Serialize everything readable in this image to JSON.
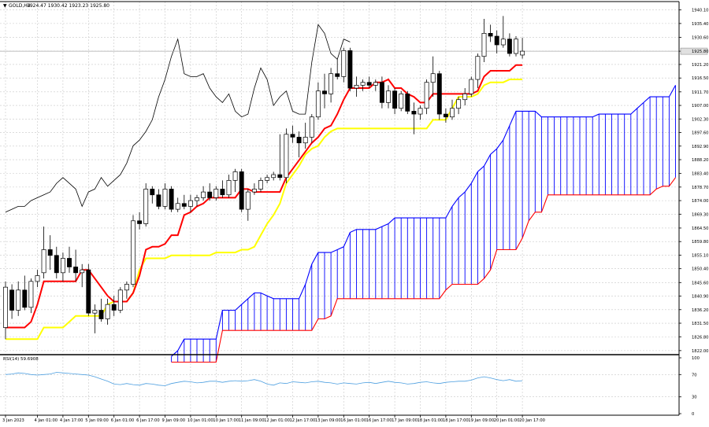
{
  "header": {
    "menu_glyph": "▼",
    "symbol": "GOLD,H4",
    "ohlc": "1924.47 1930.42 1923.23 1925.80"
  },
  "rsi_header": "RSI(14) 59.6908",
  "colors": {
    "background": "#ffffff",
    "grid": "#c8c8c8",
    "candle": "#000000",
    "tenkan": "#ff0000",
    "kijun": "#ffff00",
    "chikou": "#000000",
    "cloud_a": "#0000ff",
    "cloud_b": "#ff0000",
    "rsi": "#4d9fe0",
    "current_price_line": "#a8a8a8"
  },
  "chart_data": [
    {
      "type": "line",
      "subtype": "candlestick",
      "indicators": [
        "Ichimoku Kinko Hyo"
      ],
      "symbol": "GOLD",
      "timeframe": "H4",
      "ylim": [
        1822,
        1943
      ],
      "grid": true,
      "price_axis_ticks": [
        "1940.10",
        "1935.40",
        "1930.60",
        "1925.80",
        "1921.20",
        "1916.50",
        "1911.70",
        "1907.00",
        "1902.30",
        "1897.60",
        "1892.90",
        "1888.20",
        "1883.40",
        "1878.70",
        "1874.00",
        "1869.30",
        "1864.50",
        "1859.80",
        "1855.10",
        "1850.40",
        "1845.60",
        "1840.90",
        "1836.20",
        "1831.50",
        "1826.80",
        "1822.00"
      ],
      "price_axis_values": [
        1940.1,
        1935.4,
        1930.6,
        1925.8,
        1921.2,
        1916.5,
        1911.7,
        1907.0,
        1902.3,
        1897.6,
        1892.9,
        1888.2,
        1883.4,
        1878.7,
        1874.0,
        1869.3,
        1864.5,
        1859.8,
        1855.1,
        1850.4,
        1845.6,
        1840.9,
        1836.2,
        1831.5,
        1826.8,
        1822.0
      ],
      "current_price": "1925.80",
      "x_ticks": [
        {
          "bar": 0,
          "label": "3 Jan 2023"
        },
        {
          "bar": 5,
          "label": "4 Jan 01:00"
        },
        {
          "bar": 9,
          "label": "4 Jan 17:00"
        },
        {
          "bar": 13,
          "label": "5 Jan 09:00"
        },
        {
          "bar": 17,
          "label": "6 Jan 01:00"
        },
        {
          "bar": 21,
          "label": "6 Jan 17:00"
        },
        {
          "bar": 25,
          "label": "9 Jan 09:00"
        },
        {
          "bar": 29,
          "label": "10 Jan 01:00"
        },
        {
          "bar": 33,
          "label": "10 Jan 17:00"
        },
        {
          "bar": 37,
          "label": "11 Jan 09:00"
        },
        {
          "bar": 41,
          "label": "12 Jan 01:00"
        },
        {
          "bar": 45,
          "label": "12 Jan 17:00"
        },
        {
          "bar": 49,
          "label": "13 Jan 09:00"
        },
        {
          "bar": 53,
          "label": "16 Jan 01:00"
        },
        {
          "bar": 57,
          "label": "16 Jan 17:00"
        },
        {
          "bar": 61,
          "label": "17 Jan 09:00"
        },
        {
          "bar": 65,
          "label": "18 Jan 01:00"
        },
        {
          "bar": 69,
          "label": "18 Jan 17:00"
        },
        {
          "bar": 73,
          "label": "19 Jan 09:00"
        },
        {
          "bar": 77,
          "label": "20 Jan 01:00"
        },
        {
          "bar": 81,
          "label": "20 Jan 17:00"
        }
      ],
      "candles": [
        {
          "o": 1830,
          "h": 1846,
          "l": 1826,
          "c": 1844
        },
        {
          "o": 1843,
          "h": 1845,
          "l": 1833,
          "c": 1836
        },
        {
          "o": 1836,
          "h": 1846,
          "l": 1834,
          "c": 1843
        },
        {
          "o": 1843,
          "h": 1848,
          "l": 1836,
          "c": 1837
        },
        {
          "o": 1837,
          "h": 1847,
          "l": 1835,
          "c": 1846
        },
        {
          "o": 1846,
          "h": 1850,
          "l": 1844,
          "c": 1848
        },
        {
          "o": 1849,
          "h": 1865,
          "l": 1847,
          "c": 1857
        },
        {
          "o": 1857,
          "h": 1862,
          "l": 1850,
          "c": 1855
        },
        {
          "o": 1855,
          "h": 1858,
          "l": 1847,
          "c": 1849
        },
        {
          "o": 1849,
          "h": 1856,
          "l": 1846,
          "c": 1854
        },
        {
          "o": 1854,
          "h": 1858,
          "l": 1849,
          "c": 1851
        },
        {
          "o": 1851,
          "h": 1857,
          "l": 1846,
          "c": 1849
        },
        {
          "o": 1849,
          "h": 1852,
          "l": 1844,
          "c": 1850
        },
        {
          "o": 1850,
          "h": 1852,
          "l": 1834,
          "c": 1835
        },
        {
          "o": 1835,
          "h": 1838,
          "l": 1828,
          "c": 1836
        },
        {
          "o": 1836,
          "h": 1840,
          "l": 1832,
          "c": 1833
        },
        {
          "o": 1833,
          "h": 1840,
          "l": 1831,
          "c": 1838
        },
        {
          "o": 1838,
          "h": 1841,
          "l": 1834,
          "c": 1836
        },
        {
          "o": 1836,
          "h": 1844,
          "l": 1835,
          "c": 1843
        },
        {
          "o": 1843,
          "h": 1846,
          "l": 1840,
          "c": 1845
        },
        {
          "o": 1845,
          "h": 1869,
          "l": 1844,
          "c": 1867
        },
        {
          "o": 1867,
          "h": 1870,
          "l": 1864,
          "c": 1866
        },
        {
          "o": 1866,
          "h": 1880,
          "l": 1865,
          "c": 1878
        },
        {
          "o": 1878,
          "h": 1879,
          "l": 1873,
          "c": 1876
        },
        {
          "o": 1876,
          "h": 1878,
          "l": 1871,
          "c": 1872
        },
        {
          "o": 1872,
          "h": 1880,
          "l": 1871,
          "c": 1878
        },
        {
          "o": 1878,
          "h": 1879,
          "l": 1870,
          "c": 1871
        },
        {
          "o": 1871,
          "h": 1875,
          "l": 1870,
          "c": 1873
        },
        {
          "o": 1873,
          "h": 1876,
          "l": 1871,
          "c": 1872
        },
        {
          "o": 1872,
          "h": 1876,
          "l": 1870,
          "c": 1874
        },
        {
          "o": 1874,
          "h": 1876,
          "l": 1872,
          "c": 1875
        },
        {
          "o": 1875,
          "h": 1879,
          "l": 1874,
          "c": 1877
        },
        {
          "o": 1877,
          "h": 1880,
          "l": 1874,
          "c": 1875
        },
        {
          "o": 1875,
          "h": 1879,
          "l": 1874,
          "c": 1878
        },
        {
          "o": 1878,
          "h": 1881,
          "l": 1875,
          "c": 1876
        },
        {
          "o": 1876,
          "h": 1883,
          "l": 1875,
          "c": 1881
        },
        {
          "o": 1881,
          "h": 1885,
          "l": 1877,
          "c": 1884
        },
        {
          "o": 1884,
          "h": 1885,
          "l": 1870,
          "c": 1871
        },
        {
          "o": 1871,
          "h": 1878,
          "l": 1867,
          "c": 1877
        },
        {
          "o": 1877,
          "h": 1880,
          "l": 1876,
          "c": 1878
        },
        {
          "o": 1878,
          "h": 1882,
          "l": 1877,
          "c": 1881
        },
        {
          "o": 1881,
          "h": 1883,
          "l": 1880,
          "c": 1882
        },
        {
          "o": 1882,
          "h": 1884,
          "l": 1881,
          "c": 1883
        },
        {
          "o": 1883,
          "h": 1897,
          "l": 1881,
          "c": 1882
        },
        {
          "o": 1882,
          "h": 1899,
          "l": 1880,
          "c": 1897
        },
        {
          "o": 1897,
          "h": 1900,
          "l": 1894,
          "c": 1896
        },
        {
          "o": 1896,
          "h": 1898,
          "l": 1889,
          "c": 1894
        },
        {
          "o": 1894,
          "h": 1901,
          "l": 1892,
          "c": 1896
        },
        {
          "o": 1896,
          "h": 1904,
          "l": 1894,
          "c": 1903
        },
        {
          "o": 1903,
          "h": 1915,
          "l": 1902,
          "c": 1912
        },
        {
          "o": 1912,
          "h": 1918,
          "l": 1906,
          "c": 1911
        },
        {
          "o": 1911,
          "h": 1920,
          "l": 1908,
          "c": 1918
        },
        {
          "o": 1918,
          "h": 1923,
          "l": 1916,
          "c": 1917
        },
        {
          "o": 1917,
          "h": 1927,
          "l": 1915,
          "c": 1926
        },
        {
          "o": 1926,
          "h": 1927,
          "l": 1912,
          "c": 1913
        },
        {
          "o": 1913,
          "h": 1917,
          "l": 1910,
          "c": 1914
        },
        {
          "o": 1914,
          "h": 1916,
          "l": 1912,
          "c": 1915
        },
        {
          "o": 1915,
          "h": 1917,
          "l": 1913,
          "c": 1914
        },
        {
          "o": 1914,
          "h": 1916,
          "l": 1912,
          "c": 1915
        },
        {
          "o": 1915,
          "h": 1917,
          "l": 1906,
          "c": 1908
        },
        {
          "o": 1908,
          "h": 1914,
          "l": 1906,
          "c": 1912
        },
        {
          "o": 1912,
          "h": 1913,
          "l": 1904,
          "c": 1906
        },
        {
          "o": 1906,
          "h": 1912,
          "l": 1905,
          "c": 1911
        },
        {
          "o": 1911,
          "h": 1912,
          "l": 1904,
          "c": 1905
        },
        {
          "o": 1905,
          "h": 1908,
          "l": 1897,
          "c": 1904
        },
        {
          "o": 1904,
          "h": 1907,
          "l": 1902,
          "c": 1906
        },
        {
          "o": 1906,
          "h": 1916,
          "l": 1904,
          "c": 1915
        },
        {
          "o": 1915,
          "h": 1924,
          "l": 1910,
          "c": 1918
        },
        {
          "o": 1918,
          "h": 1919,
          "l": 1902,
          "c": 1904
        },
        {
          "o": 1904,
          "h": 1906,
          "l": 1901,
          "c": 1903
        },
        {
          "o": 1903,
          "h": 1909,
          "l": 1902,
          "c": 1906
        },
        {
          "o": 1906,
          "h": 1910,
          "l": 1904,
          "c": 1909
        },
        {
          "o": 1909,
          "h": 1913,
          "l": 1907,
          "c": 1911
        },
        {
          "o": 1911,
          "h": 1917,
          "l": 1910,
          "c": 1916
        },
        {
          "o": 1916,
          "h": 1925,
          "l": 1913,
          "c": 1924
        },
        {
          "o": 1924,
          "h": 1937,
          "l": 1922,
          "c": 1932
        },
        {
          "o": 1932,
          "h": 1935,
          "l": 1929,
          "c": 1931
        },
        {
          "o": 1931,
          "h": 1933,
          "l": 1925,
          "c": 1928
        },
        {
          "o": 1928,
          "h": 1938,
          "l": 1927,
          "c": 1930
        },
        {
          "o": 1930,
          "h": 1932,
          "l": 1924,
          "c": 1925
        },
        {
          "o": 1925,
          "h": 1931,
          "l": 1924,
          "c": 1930
        },
        {
          "o": 1924.47,
          "h": 1930.42,
          "l": 1923.23,
          "c": 1925.8
        }
      ],
      "tenkan": [
        1830,
        1830,
        1830,
        1830,
        1832,
        1838,
        1846,
        1846,
        1846,
        1846,
        1846,
        1846,
        1850,
        1850,
        1847,
        1844,
        1841,
        1839,
        1839,
        1839,
        1842,
        1848,
        1857,
        1858,
        1858,
        1859,
        1862,
        1862,
        1869,
        1870,
        1872,
        1873,
        1875,
        1875,
        1875,
        1875,
        1875,
        1878,
        1878,
        1877,
        1877,
        1877,
        1877,
        1877,
        1882,
        1885,
        1888,
        1891,
        1894,
        1896,
        1899,
        1900,
        1904,
        1909,
        1913,
        1913,
        1913,
        1913,
        1915,
        1915,
        1916,
        1913,
        1913,
        1911,
        1910,
        1908,
        1908,
        1911,
        1911,
        1911,
        1911,
        1911,
        1911,
        1911,
        1912,
        1917,
        1919,
        1919,
        1919,
        1919,
        1921,
        1921
      ],
      "kijun": [
        1826,
        1826,
        1826,
        1826,
        1826,
        1826,
        1830,
        1830,
        1830,
        1830,
        1832,
        1834,
        1834,
        1834,
        1834,
        1834,
        1838,
        1839,
        1839,
        1839,
        1842,
        1850,
        1854,
        1854,
        1854,
        1854,
        1855,
        1855,
        1855,
        1855,
        1855,
        1855,
        1855,
        1856,
        1856,
        1856,
        1856,
        1857,
        1857,
        1858,
        1862,
        1866,
        1869,
        1873,
        1880,
        1883,
        1886,
        1890,
        1892,
        1893,
        1896,
        1898,
        1899,
        1899,
        1899,
        1899,
        1899,
        1899,
        1899,
        1899,
        1899,
        1899,
        1899,
        1899,
        1899,
        1899,
        1899,
        1902,
        1902,
        1902,
        1906,
        1910,
        1910,
        1910,
        1911,
        1914,
        1915,
        1915,
        1915,
        1916,
        1916,
        1916
      ],
      "chikou": [
        1870,
        1871,
        1872,
        1872,
        1874,
        1875,
        1876,
        1877,
        1880,
        1882,
        1880,
        1878,
        1872,
        1877,
        1878,
        1882,
        1879,
        1881,
        1883,
        1887,
        1893,
        1895,
        1898,
        1902,
        1910,
        1916,
        1924,
        1930,
        1918,
        1917,
        1917,
        1918,
        1913,
        1910,
        1908,
        1911,
        1905,
        1903,
        1904,
        1913,
        1920,
        1916,
        1907,
        1910,
        1912,
        1905,
        1904,
        1904,
        1922,
        1935,
        1932,
        1925,
        1923,
        1930,
        1929
      ],
      "cloud_shift": 26,
      "senkou_a": [
        1820,
        1822,
        1826,
        1826,
        1826,
        1826,
        1826,
        1826,
        1836,
        1836,
        1836,
        1838,
        1840,
        1842,
        1842,
        1841,
        1840,
        1840,
        1840,
        1840,
        1840,
        1845,
        1852,
        1856,
        1856,
        1856,
        1857,
        1858,
        1863,
        1864,
        1864,
        1864,
        1864,
        1865,
        1866,
        1868,
        1868,
        1868,
        1868,
        1868,
        1868,
        1868,
        1868,
        1868,
        1872,
        1875,
        1877,
        1880,
        1884,
        1886,
        1890,
        1892,
        1895,
        1900,
        1905,
        1905,
        1905,
        1905,
        1903,
        1903,
        1903,
        1903,
        1903,
        1903,
        1903,
        1903,
        1903,
        1904,
        1904,
        1904,
        1904,
        1904,
        1904,
        1906,
        1908,
        1910,
        1910,
        1910,
        1910,
        1914,
        1916,
        1916
      ],
      "senkou_b": [
        1818,
        1818,
        1818,
        1818,
        1818,
        1818,
        1818,
        1818,
        1829,
        1829,
        1829,
        1829,
        1829,
        1829,
        1829,
        1829,
        1829,
        1829,
        1829,
        1829,
        1829,
        1829,
        1829,
        1833,
        1833,
        1834,
        1840,
        1840,
        1840,
        1840,
        1840,
        1840,
        1840,
        1840,
        1840,
        1840,
        1840,
        1840,
        1840,
        1840,
        1840,
        1840,
        1840,
        1843,
        1845,
        1845,
        1845,
        1845,
        1845,
        1847,
        1850,
        1857,
        1857,
        1857,
        1857,
        1861,
        1867,
        1870,
        1870,
        1876,
        1876,
        1876,
        1876,
        1876,
        1876,
        1876,
        1876,
        1876,
        1876,
        1876,
        1876,
        1876,
        1876,
        1876,
        1876,
        1876,
        1878,
        1879,
        1879,
        1882,
        1890,
        1895,
        1897,
        1901
      ]
    },
    {
      "type": "line",
      "name": "RSI(14) 59.6908",
      "ylim": [
        0,
        100
      ],
      "axis_ticks": [
        "100",
        "70",
        "30",
        "0"
      ],
      "axis_values": [
        100,
        70,
        30,
        0
      ],
      "values": [
        70,
        71,
        73,
        72,
        70,
        69,
        70,
        71,
        74,
        73,
        72,
        71,
        70,
        69,
        66,
        62,
        58,
        53,
        52,
        54,
        52,
        51,
        54,
        53,
        51,
        50,
        54,
        56,
        58,
        57,
        55,
        56,
        58,
        58,
        56,
        58,
        59,
        58,
        59,
        61,
        58,
        53,
        51,
        55,
        54,
        57,
        56,
        55,
        57,
        58,
        56,
        55,
        53,
        55,
        54,
        53,
        55,
        56,
        54,
        56,
        58,
        56,
        55,
        53,
        54,
        56,
        57,
        55,
        54,
        56,
        57,
        58,
        58,
        60,
        64,
        66,
        64,
        61,
        59,
        61,
        58,
        59
      ],
      "last_value": 59.6908
    }
  ]
}
